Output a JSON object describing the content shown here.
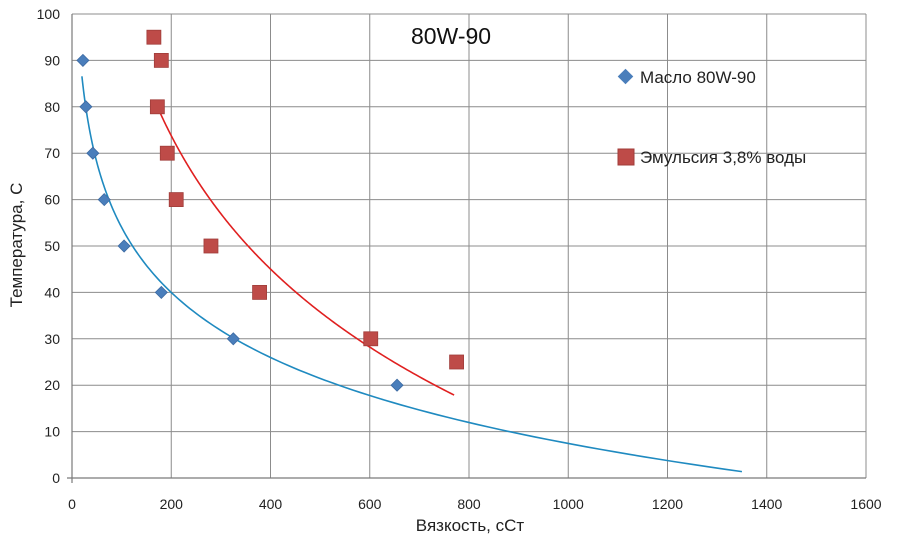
{
  "chart_data": {
    "type": "scatter",
    "title": "80W-90",
    "xlabel": "Вязкость, сСт",
    "ylabel": "Температура, С",
    "xlim": [
      0,
      1600
    ],
    "ylim": [
      0,
      100
    ],
    "xticks": [
      "0",
      "200",
      "400",
      "600",
      "800",
      "1000",
      "1200",
      "1400",
      "1600"
    ],
    "yticks": [
      "0",
      "10",
      "20",
      "30",
      "40",
      "50",
      "60",
      "70",
      "80",
      "90",
      "100"
    ],
    "grid": true,
    "legend_position": "right",
    "series": [
      {
        "name": "Масло 80W-90",
        "marker": "diamond",
        "color": "#4a7ebb",
        "points": [
          {
            "x": 22,
            "y": 90
          },
          {
            "x": 28,
            "y": 80
          },
          {
            "x": 42,
            "y": 70
          },
          {
            "x": 65,
            "y": 60
          },
          {
            "x": 105,
            "y": 50
          },
          {
            "x": 180,
            "y": 40
          },
          {
            "x": 325,
            "y": 30
          },
          {
            "x": 655,
            "y": 20
          }
        ],
        "trendline": {
          "color": "#1f8ac0",
          "x_from": 20,
          "x_to": 1350
        }
      },
      {
        "name": "Эмульсия 3,8% воды",
        "marker": "square",
        "color": "#be4b48",
        "points": [
          {
            "x": 165,
            "y": 95
          },
          {
            "x": 180,
            "y": 90
          },
          {
            "x": 172,
            "y": 80
          },
          {
            "x": 192,
            "y": 70
          },
          {
            "x": 210,
            "y": 60
          },
          {
            "x": 280,
            "y": 50
          },
          {
            "x": 378,
            "y": 40
          },
          {
            "x": 602,
            "y": 30
          },
          {
            "x": 775,
            "y": 25
          }
        ],
        "trendline": {
          "color": "#e02020",
          "x_from": 170,
          "x_to": 770
        }
      }
    ]
  }
}
